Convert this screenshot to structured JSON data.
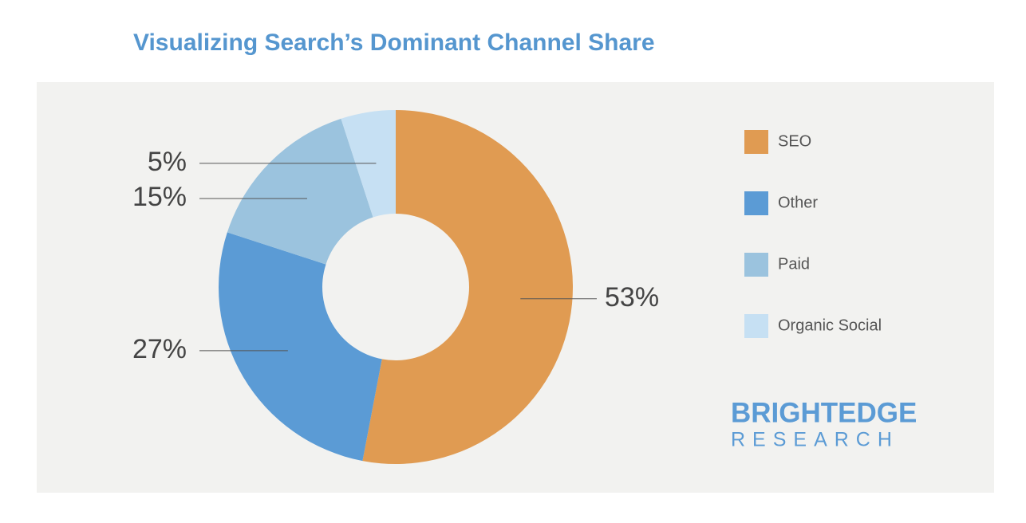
{
  "chart_data": {
    "type": "donut",
    "title": "Visualizing Search’s Dominant Channel Share",
    "categories": [
      "SEO",
      "Other",
      "Paid",
      "Organic Social"
    ],
    "values": [
      53,
      27,
      15,
      5
    ],
    "value_labels": [
      "53%",
      "27%",
      "15%",
      "5%"
    ],
    "colors": [
      "#e09b52",
      "#5b9bd5",
      "#9bc3de",
      "#c6e0f3"
    ],
    "legend": "right",
    "logo": [
      "BRIGHTEDGE",
      "RESEARCH"
    ]
  }
}
